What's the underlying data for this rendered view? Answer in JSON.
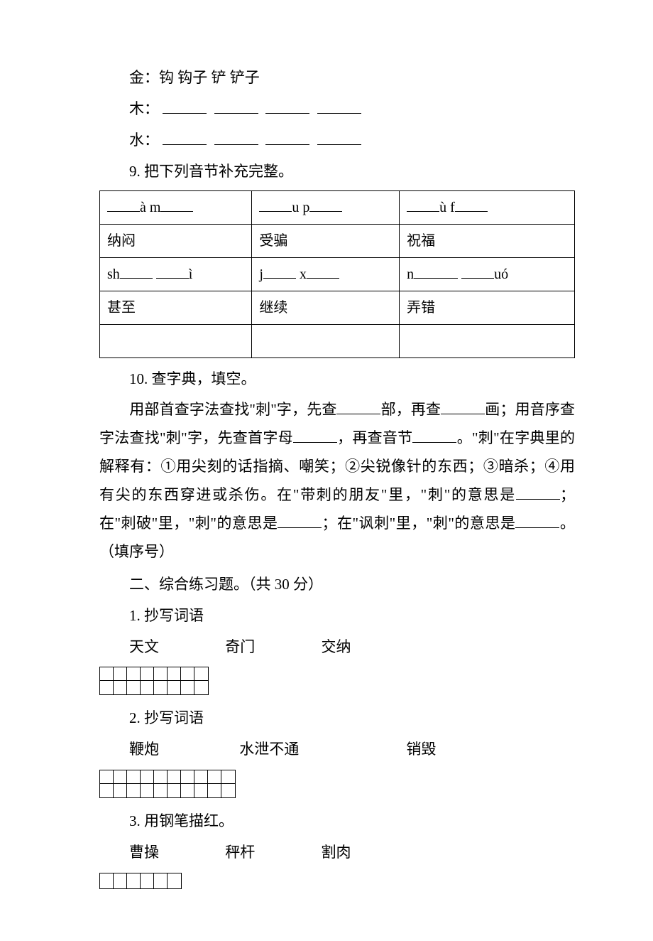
{
  "lines": {
    "jin": "金：钩 钩子   铲   铲子",
    "mu_prefix": "木：",
    "shui_prefix": "水：",
    "q9": "9. 把下列音节补充完整。",
    "q10_title": "10. 查字典，填空。",
    "q10_body_1": "用部首查字法查找\"刺\"字，先查",
    "q10_body_2": "部，再查",
    "q10_body_3": "画；用音序查字法查找\"刺\"字，先查首字母",
    "q10_body_4": "，再查音节",
    "q10_body_5": "。\"刺\"在字典里的解释有：",
    "q10_opts": "①用尖刻的话指摘、嘲笑；②尖锐像针的东西；③暗杀；④用有尖的东西穿进或杀伤。",
    "q10_body_6": "在\"带刺的朋友\"里，\"刺\"的意思是",
    "q10_body_7": "；在\"刺破\"里，\"刺\"的意思是",
    "q10_body_8": "；在\"讽刺\"里，\"刺\"的意思是",
    "q10_body_9": "。（填序号）",
    "sec2": "二、综合练习题。（共 30 分）",
    "q1": "1. 抄写词语",
    "q1_words": [
      "天文",
      "奇门",
      "交纳"
    ],
    "q2": "2. 抄写词语",
    "q2_words": [
      "鞭炮",
      "水泄不通",
      "销毁"
    ],
    "q3": "3. 用钢笔描红。",
    "q3_words": [
      "曹操",
      "秤杆",
      "割肉"
    ]
  },
  "table": {
    "r1": {
      "c1a": "à m",
      "c2a": "u p",
      "c3a": "ù f"
    },
    "r2": {
      "c1": "纳闷",
      "c2": "受骗",
      "c3": "祝福"
    },
    "r3": {
      "c1a": "sh",
      "c1b": "ì",
      "c2a": "j",
      "c2b": "x",
      "c3a": "n",
      "c3b": "uó"
    },
    "r4": {
      "c1": "甚至",
      "c2": "继续",
      "c3": "弄错"
    }
  },
  "grids": {
    "g1": {
      "rows": 2,
      "cols": 8
    },
    "g2": {
      "rows": 2,
      "cols": 10
    },
    "g3": {
      "rows": 1,
      "cols": 6
    }
  }
}
